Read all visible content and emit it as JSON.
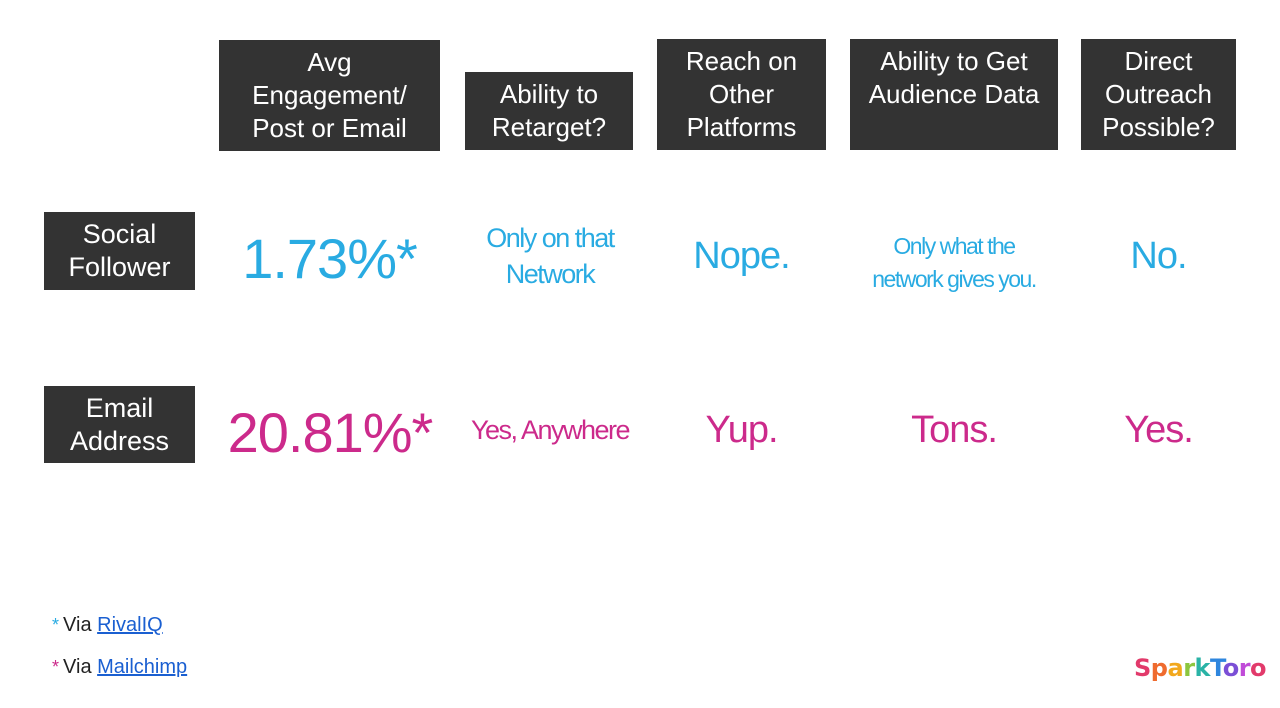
{
  "colors": {
    "header_bg": "#333333",
    "social_accent": "#29abe2",
    "email_accent": "#cc2a8b",
    "link": "#1a5fd1"
  },
  "columns": [
    "Avg\nEngagement/\nPost or Email",
    "Ability to\nRetarget?",
    "Reach on\nOther\nPlatforms",
    "Ability to Get\nAudience Data",
    "Direct\nOutreach\nPossible?"
  ],
  "rows": [
    {
      "label": "Social\nFollower",
      "values": [
        "1.73%*",
        "Only on that\nNetwork",
        "Nope.",
        "Only what the\nnetwork gives you.",
        "No."
      ]
    },
    {
      "label": "Email\nAddress",
      "values": [
        "20.81%*",
        "Yes, Anywhere",
        "Yup.",
        "Tons.",
        "Yes."
      ]
    }
  ],
  "footnotes": [
    {
      "star": "*",
      "text": "Via",
      "link": "RivalIQ"
    },
    {
      "star": "*",
      "text": "Via",
      "link": "Mailchimp"
    }
  ],
  "logo": {
    "letters": [
      "S",
      "p",
      "a",
      "r",
      "k",
      "T",
      "o",
      "r",
      "o"
    ],
    "colors": [
      "#e23a6b",
      "#ef6b2e",
      "#f2a81d",
      "#8cc63f",
      "#2ab3a6",
      "#2e86de",
      "#7b4fd6",
      "#c04bd8",
      "#e23a6b"
    ]
  }
}
